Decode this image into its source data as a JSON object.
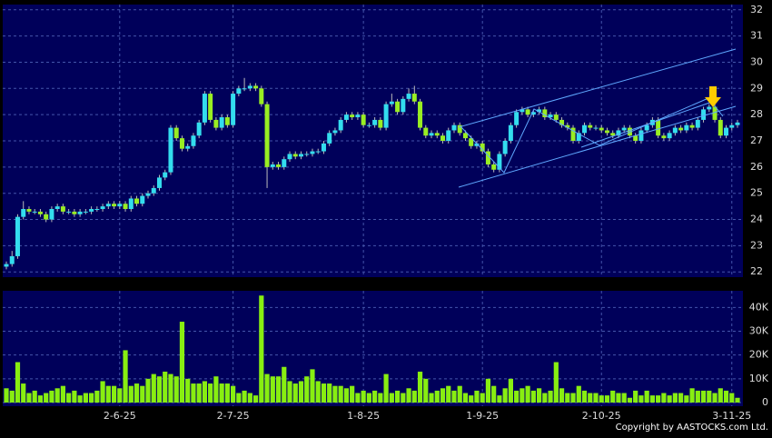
{
  "chart_data": {
    "type": "candlestick",
    "categories": [
      null,
      null,
      null,
      null,
      null,
      null,
      null,
      null,
      null,
      null,
      null,
      null,
      null,
      null,
      null,
      null,
      null,
      null,
      null,
      null,
      "2-6-25",
      null,
      null,
      null,
      null,
      null,
      null,
      null,
      null,
      null,
      null,
      null,
      null,
      null,
      null,
      null,
      null,
      null,
      null,
      null,
      "2-7-25",
      null,
      null,
      null,
      null,
      null,
      null,
      null,
      null,
      null,
      null,
      null,
      null,
      null,
      null,
      null,
      null,
      null,
      null,
      null,
      null,
      null,
      null,
      "1-8-25",
      null,
      null,
      null,
      null,
      null,
      null,
      null,
      null,
      null,
      null,
      null,
      null,
      null,
      null,
      null,
      null,
      null,
      null,
      null,
      null,
      "1-9-25",
      null,
      null,
      null,
      null,
      null,
      null,
      null,
      null,
      null,
      null,
      null,
      null,
      null,
      null,
      null,
      null,
      null,
      null,
      null,
      null,
      "2-10-25",
      null,
      null,
      null,
      null,
      null,
      null,
      null,
      null,
      null,
      null,
      null,
      null,
      null,
      null,
      null,
      null,
      null,
      null,
      null,
      null,
      null,
      null,
      "3-11-25",
      null
    ],
    "open": [
      22.2,
      22.3,
      22.6,
      24.1,
      24.4,
      24.3,
      24.3,
      24.2,
      24.0,
      24.4,
      24.5,
      24.3,
      24.3,
      24.2,
      24.3,
      24.3,
      24.4,
      24.4,
      24.5,
      24.6,
      24.5,
      24.6,
      24.4,
      24.8,
      24.6,
      24.9,
      25.0,
      25.2,
      25.6,
      25.8,
      27.5,
      27.1,
      26.7,
      26.8,
      27.2,
      27.7,
      28.8,
      27.8,
      27.5,
      27.9,
      27.6,
      28.8,
      29.0,
      29.0,
      29.1,
      29.0,
      28.4,
      26.0,
      26.1,
      26.0,
      26.3,
      26.5,
      26.4,
      26.5,
      26.5,
      26.6,
      26.6,
      26.9,
      27.3,
      27.4,
      27.8,
      28.0,
      27.9,
      28.0,
      27.6,
      27.6,
      27.8,
      27.5,
      28.4,
      28.5,
      28.1,
      28.6,
      28.8,
      28.5,
      27.5,
      27.2,
      27.3,
      27.2,
      27.0,
      27.4,
      27.6,
      27.3,
      27.1,
      26.8,
      26.9,
      26.6,
      26.1,
      25.9,
      26.5,
      27.0,
      27.6,
      28.1,
      28.2,
      28.0,
      28.1,
      28.2,
      27.9,
      28.0,
      27.8,
      27.6,
      27.5,
      27.0,
      27.3,
      27.6,
      27.5,
      27.5,
      27.4,
      27.3,
      27.2,
      27.4,
      27.5,
      27.2,
      27.0,
      27.4,
      27.6,
      27.8,
      27.2,
      27.1,
      27.3,
      27.5,
      27.4,
      27.6,
      27.5,
      27.8,
      28.2,
      28.3,
      27.8,
      27.2,
      27.5,
      27.6
    ],
    "high": [
      22.4,
      22.8,
      24.2,
      24.7,
      24.5,
      24.4,
      24.4,
      24.3,
      24.5,
      24.6,
      24.6,
      24.4,
      24.4,
      24.4,
      24.4,
      24.5,
      24.5,
      24.6,
      24.7,
      24.7,
      24.7,
      24.7,
      24.9,
      24.9,
      25.0,
      25.1,
      25.3,
      25.7,
      25.9,
      27.6,
      27.6,
      27.2,
      26.9,
      27.3,
      27.8,
      28.9,
      28.9,
      27.9,
      28.0,
      28.0,
      28.9,
      29.1,
      29.4,
      29.2,
      29.2,
      29.1,
      28.5,
      26.2,
      26.2,
      26.4,
      26.6,
      26.6,
      26.6,
      26.6,
      26.7,
      26.7,
      27.0,
      27.4,
      27.5,
      27.9,
      28.1,
      28.1,
      28.1,
      28.1,
      27.7,
      27.9,
      27.9,
      28.5,
      28.8,
      28.6,
      28.7,
      29.0,
      29.1,
      28.6,
      27.6,
      27.4,
      27.4,
      27.3,
      27.5,
      27.7,
      27.7,
      27.4,
      27.2,
      27.0,
      27.0,
      26.7,
      26.2,
      26.6,
      27.1,
      27.7,
      28.2,
      28.3,
      28.3,
      28.2,
      28.3,
      28.3,
      28.1,
      28.1,
      27.9,
      27.7,
      27.6,
      27.4,
      27.7,
      27.7,
      27.6,
      27.6,
      27.5,
      27.4,
      27.5,
      27.6,
      27.6,
      27.3,
      27.5,
      27.7,
      27.9,
      27.9,
      27.3,
      27.4,
      27.6,
      27.6,
      27.7,
      27.7,
      27.9,
      28.3,
      28.4,
      28.4,
      27.9,
      27.6,
      27.7,
      27.8
    ],
    "low": [
      22.1,
      22.2,
      22.5,
      24.0,
      24.2,
      24.2,
      24.1,
      23.9,
      23.9,
      24.3,
      24.2,
      24.2,
      24.1,
      24.1,
      24.2,
      24.2,
      24.3,
      24.3,
      24.4,
      24.4,
      24.4,
      24.3,
      24.3,
      24.5,
      24.5,
      24.8,
      24.9,
      25.1,
      25.5,
      25.7,
      27.0,
      26.6,
      26.6,
      26.7,
      27.1,
      27.6,
      27.7,
      27.4,
      27.4,
      27.5,
      27.5,
      28.7,
      28.9,
      28.9,
      28.9,
      28.3,
      25.2,
      25.9,
      25.9,
      25.9,
      26.2,
      26.3,
      26.3,
      26.4,
      26.4,
      26.5,
      26.5,
      26.8,
      27.2,
      27.3,
      27.7,
      27.8,
      27.8,
      27.5,
      27.5,
      27.5,
      27.4,
      27.4,
      28.3,
      28.0,
      28.0,
      28.5,
      28.4,
      27.4,
      27.1,
      27.1,
      27.1,
      26.9,
      26.9,
      27.3,
      27.2,
      27.0,
      26.7,
      26.7,
      26.5,
      26.0,
      25.8,
      25.8,
      26.4,
      26.9,
      27.5,
      28.0,
      27.9,
      27.9,
      28.0,
      27.8,
      27.8,
      27.7,
      27.5,
      27.4,
      26.9,
      26.9,
      27.2,
      27.4,
      27.4,
      27.3,
      27.2,
      27.1,
      27.1,
      27.3,
      27.1,
      26.9,
      26.9,
      27.3,
      27.5,
      27.1,
      27.0,
      27.0,
      27.2,
      27.3,
      27.3,
      27.4,
      27.4,
      27.7,
      28.1,
      27.7,
      27.1,
      27.1,
      27.4,
      27.5
    ],
    "close": [
      22.3,
      22.6,
      24.1,
      24.4,
      24.3,
      24.3,
      24.2,
      24.0,
      24.4,
      24.5,
      24.3,
      24.3,
      24.2,
      24.3,
      24.3,
      24.4,
      24.4,
      24.5,
      24.6,
      24.5,
      24.6,
      24.4,
      24.8,
      24.6,
      24.9,
      25.0,
      25.2,
      25.6,
      25.8,
      27.5,
      27.1,
      26.7,
      26.8,
      27.2,
      27.7,
      28.8,
      27.8,
      27.5,
      27.9,
      27.6,
      28.8,
      29.0,
      29.0,
      29.1,
      29.0,
      28.4,
      26.0,
      26.1,
      26.0,
      26.3,
      26.5,
      26.4,
      26.5,
      26.5,
      26.6,
      26.6,
      26.9,
      27.3,
      27.4,
      27.8,
      28.0,
      27.9,
      28.0,
      27.6,
      27.6,
      27.8,
      27.5,
      28.4,
      28.5,
      28.1,
      28.6,
      28.8,
      28.5,
      27.5,
      27.2,
      27.3,
      27.2,
      27.0,
      27.4,
      27.6,
      27.3,
      27.1,
      26.8,
      26.9,
      26.6,
      26.1,
      25.9,
      26.5,
      27.0,
      27.6,
      28.1,
      28.2,
      28.0,
      28.1,
      28.2,
      27.9,
      28.0,
      27.8,
      27.6,
      27.5,
      27.0,
      27.3,
      27.6,
      27.5,
      27.5,
      27.4,
      27.3,
      27.2,
      27.4,
      27.5,
      27.2,
      27.0,
      27.4,
      27.6,
      27.8,
      27.2,
      27.1,
      27.3,
      27.5,
      27.4,
      27.6,
      27.5,
      27.8,
      28.2,
      28.3,
      27.8,
      27.2,
      27.5,
      27.6,
      27.7
    ],
    "up_color": "#33ddee",
    "down_color": "#99ee22",
    "ylim": [
      21.8,
      32.2
    ],
    "yticks": [
      22,
      23,
      24,
      25,
      26,
      27,
      28,
      29,
      30,
      31,
      32
    ],
    "volume": {
      "color": "#88ee11",
      "ylim": [
        0,
        47000
      ],
      "yticks": [
        {
          "value": 0,
          "label": "0"
        },
        {
          "value": 10000,
          "label": "10K"
        },
        {
          "value": 20000,
          "label": "20K"
        },
        {
          "value": 30000,
          "label": "30K"
        },
        {
          "value": 40000,
          "label": "40K"
        }
      ],
      "values": [
        6000,
        5000,
        17000,
        8000,
        4000,
        5000,
        3000,
        4000,
        5000,
        6000,
        7000,
        4000,
        5000,
        3000,
        4000,
        4000,
        5000,
        9000,
        7000,
        7000,
        6000,
        22000,
        7000,
        8000,
        7000,
        10000,
        12000,
        11000,
        13000,
        12000,
        11000,
        34000,
        10000,
        8000,
        8000,
        9000,
        8000,
        11000,
        8000,
        8000,
        7000,
        4000,
        5000,
        4000,
        3000,
        45000,
        12000,
        11000,
        11000,
        15000,
        9000,
        8000,
        9000,
        11000,
        14000,
        9000,
        8000,
        8000,
        7000,
        7000,
        6000,
        7000,
        4000,
        5000,
        4000,
        5000,
        4000,
        12000,
        4000,
        5000,
        4000,
        6000,
        5000,
        13000,
        10000,
        4000,
        5000,
        6000,
        7000,
        5000,
        7000,
        4000,
        3000,
        5000,
        4000,
        10000,
        7000,
        3000,
        6000,
        10000,
        5000,
        6000,
        7000,
        5000,
        6000,
        4000,
        5000,
        17000,
        6000,
        4000,
        4000,
        7000,
        5000,
        4000,
        4000,
        3000,
        3000,
        5000,
        4000,
        4000,
        2000,
        5000,
        3000,
        5000,
        3000,
        3000,
        4000,
        3000,
        4000,
        4000,
        3000,
        6000,
        5000,
        5000,
        5000,
        4000,
        6000,
        5000,
        4000,
        2000
      ]
    },
    "grid": true,
    "copyright": "Copyright by AASTOCKS.com Ltd."
  }
}
